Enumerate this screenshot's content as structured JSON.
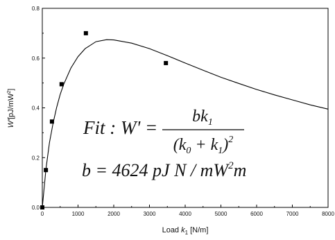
{
  "chart_data": {
    "type": "scatter",
    "xlabel": "Load k1 [N/m]",
    "xlabel_parts": {
      "pre": "Load ",
      "var": "k",
      "sub": "1",
      "post": " [N/m]"
    },
    "ylabel": "W' [pJ/mW2]",
    "ylabel_parts": {
      "var": "W'",
      "unit": "[pJ/mW",
      "sup": "2",
      "close": "]"
    },
    "xlim": [
      0,
      8000
    ],
    "ylim": [
      0,
      0.8
    ],
    "x_ticks": [
      "0",
      "1000",
      "2000",
      "3000",
      "4000",
      "5000",
      "6000",
      "7000",
      "8000"
    ],
    "y_ticks": [
      "0.0",
      "0.2",
      "0.4",
      "0.6",
      "0.8"
    ],
    "grid": false,
    "series": [
      {
        "kind": "points",
        "x": [
          0,
          100,
          270,
          540,
          1220,
          3460
        ],
        "y": [
          0.0,
          0.15,
          0.345,
          0.495,
          0.7,
          0.58
        ]
      },
      {
        "kind": "fit-curve",
        "x": [
          0,
          100,
          200,
          300,
          400,
          500,
          600,
          800,
          1000,
          1200,
          1500,
          1800,
          2000,
          2500,
          3000,
          3500,
          4000,
          4500,
          5000,
          5500,
          6000,
          6500,
          7000,
          7500,
          8000
        ],
        "y": [
          0.0,
          0.153,
          0.26,
          0.338,
          0.401,
          0.454,
          0.495,
          0.56,
          0.606,
          0.638,
          0.666,
          0.674,
          0.673,
          0.66,
          0.638,
          0.61,
          0.58,
          0.551,
          0.523,
          0.498,
          0.474,
          0.452,
          0.432,
          0.412,
          0.395
        ]
      }
    ],
    "annotations": {
      "line1_prefix": "Fit : W' =",
      "numerator": "bk",
      "numerator_sub": "1",
      "denominator_open": "(k",
      "denominator_sub0": "0",
      "denominator_plus": " + k",
      "denominator_sub1": "1",
      "denominator_close": ")",
      "denominator_sup": "2",
      "line2_main": "b = 4624  pJ  N / mW",
      "line2_sup": "2",
      "line2_tail": "m"
    }
  }
}
